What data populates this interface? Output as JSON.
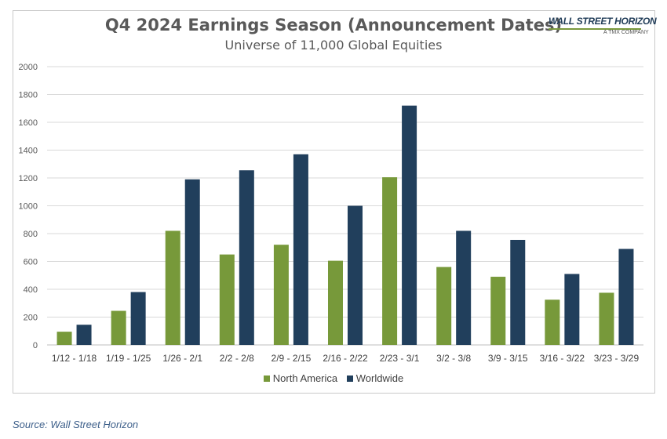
{
  "chart_data": {
    "type": "bar",
    "title": "Q4 2024 Earnings Season (Announcement Dates)",
    "subtitle": "Universe of 11,000 Global Equities",
    "categories": [
      "1/12 - 1/18",
      "1/19 - 1/25",
      "1/26 - 2/1",
      "2/2 - 2/8",
      "2/9 - 2/15",
      "2/16 - 2/22",
      "2/23 - 3/1",
      "3/2 - 3/8",
      "3/9 - 3/15",
      "3/16 - 3/22",
      "3/23 - 3/29"
    ],
    "series": [
      {
        "name": "North America",
        "color": "#77993a",
        "values": [
          95,
          245,
          820,
          650,
          720,
          605,
          1205,
          560,
          490,
          325,
          375
        ]
      },
      {
        "name": "Worldwide",
        "color": "#213f5c",
        "values": [
          145,
          380,
          1190,
          1255,
          1370,
          1000,
          1720,
          820,
          755,
          510,
          690
        ]
      }
    ],
    "ylim": [
      0,
      2000
    ],
    "yticks": [
      "0",
      "200",
      "400",
      "600",
      "800",
      "1000",
      "1200",
      "1400",
      "1600",
      "1800",
      "2000"
    ],
    "grid": true,
    "legend_position": "bottom"
  },
  "logo": {
    "text": "WALL STREET HORIZON",
    "sub": "A TMX COMPANY"
  },
  "source": "Source: Wall Street Horizon"
}
